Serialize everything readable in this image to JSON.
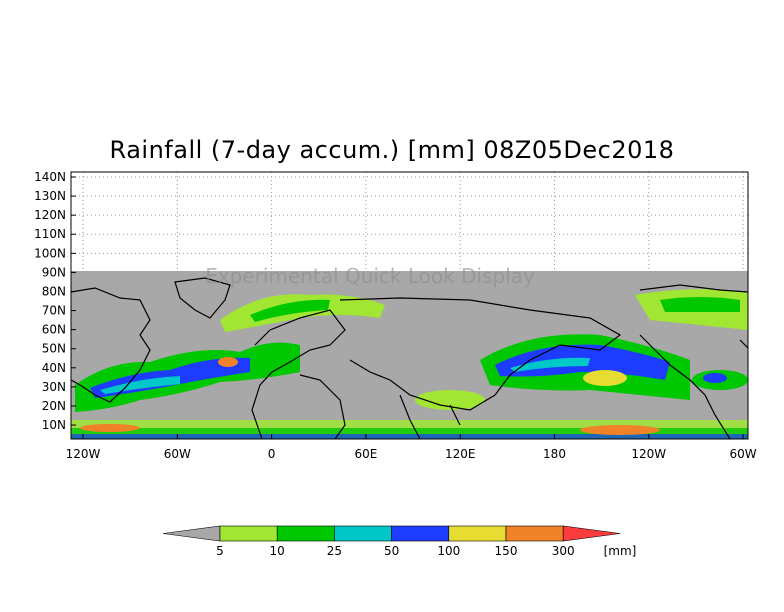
{
  "title": "Rainfall (7-day accum.) [mm] 08Z05Dec2018",
  "watermark": "Experimental Quick Look Display",
  "map": {
    "lat_ticks": [
      "140N",
      "130N",
      "120N",
      "110N",
      "100N",
      "90N",
      "80N",
      "70N",
      "60N",
      "50N",
      "40N",
      "30N",
      "20N",
      "10N"
    ],
    "lon_ticks": [
      "120W",
      "60W",
      "0",
      "60E",
      "120E",
      "180",
      "120W",
      "60W"
    ],
    "lat_range": [
      4,
      145
    ],
    "lon_range": [
      -135,
      300
    ],
    "data_extent_lat": [
      4,
      90
    ],
    "no_data_color": "#a8a8a8",
    "grid": "dotted"
  },
  "colorbar": {
    "unit": "[mm]",
    "tick_labels": [
      "5",
      "10",
      "25",
      "50",
      "100",
      "150",
      "300"
    ],
    "colors": [
      "#a8a8a8",
      "#a0e632",
      "#00c800",
      "#00c8c8",
      "#1e3cff",
      "#e6dc32",
      "#f08228",
      "#fa3c3c"
    ]
  }
}
